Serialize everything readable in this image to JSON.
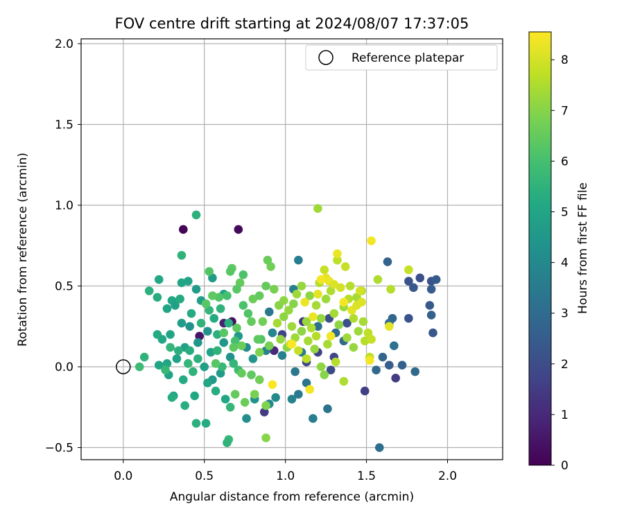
{
  "chart_data": {
    "type": "scatter",
    "title": "FOV centre drift starting at 2024/08/07 17:37:05",
    "xlabel": "Angular distance from reference (arcmin)",
    "ylabel": "Rotation from reference (arcmin)",
    "xlim": [
      -0.26,
      2.34
    ],
    "ylim": [
      -0.575,
      2.03
    ],
    "xticks": [
      0.0,
      0.5,
      1.0,
      1.5,
      2.0
    ],
    "xtick_labels": [
      "0.0",
      "0.5",
      "1.0",
      "1.5",
      "2.0"
    ],
    "yticks": [
      -0.5,
      0.0,
      0.5,
      1.0,
      1.5,
      2.0
    ],
    "ytick_labels": [
      "−0.5",
      "0.0",
      "0.5",
      "1.0",
      "1.5",
      "2.0"
    ],
    "grid": true,
    "legend": {
      "position": "top-right",
      "label": "Reference platepar"
    },
    "reference_point": {
      "x": 0.0,
      "y": 0.0
    },
    "colorbar": {
      "label": "Hours from first FF file",
      "range": [
        0,
        8.55
      ],
      "ticks": [
        0,
        1,
        2,
        3,
        4,
        5,
        6,
        7,
        8
      ],
      "tick_labels": [
        "0",
        "1",
        "2",
        "3",
        "4",
        "5",
        "6",
        "7",
        "8"
      ],
      "colormap": "viridis"
    },
    "points": [
      {
        "x": 0.37,
        "y": 0.85,
        "h": 0.1
      },
      {
        "x": 0.71,
        "y": 0.85,
        "h": 0.2
      },
      {
        "x": 0.67,
        "y": 0.28,
        "h": 0.3
      },
      {
        "x": 0.47,
        "y": 0.19,
        "h": 0.5
      },
      {
        "x": 0.87,
        "y": -0.28,
        "h": 1.5
      },
      {
        "x": 0.62,
        "y": 0.27,
        "h": 0.8
      },
      {
        "x": 0.93,
        "y": 0.1,
        "h": 1.0
      },
      {
        "x": 1.11,
        "y": 0.28,
        "h": 1.3
      },
      {
        "x": 1.2,
        "y": 0.09,
        "h": 1.6
      },
      {
        "x": 1.28,
        "y": -0.02,
        "h": 1.9
      },
      {
        "x": 1.3,
        "y": 0.06,
        "h": 1.7
      },
      {
        "x": 1.49,
        "y": -0.15,
        "h": 1.6
      },
      {
        "x": 1.68,
        "y": -0.07,
        "h": 1.5
      },
      {
        "x": 1.13,
        "y": 0.03,
        "h": 1.8
      },
      {
        "x": 0.98,
        "y": 0.2,
        "h": 1.7
      },
      {
        "x": 1.27,
        "y": 0.3,
        "h": 2.0
      },
      {
        "x": 1.38,
        "y": 0.27,
        "h": 2.1
      },
      {
        "x": 1.83,
        "y": 0.55,
        "h": 2.1
      },
      {
        "x": 1.9,
        "y": 0.53,
        "h": 2.2
      },
      {
        "x": 1.93,
        "y": 0.54,
        "h": 2.4
      },
      {
        "x": 1.9,
        "y": 0.48,
        "h": 2.5
      },
      {
        "x": 1.79,
        "y": 0.49,
        "h": 2.3
      },
      {
        "x": 1.76,
        "y": 0.53,
        "h": 2.2
      },
      {
        "x": 1.89,
        "y": 0.38,
        "h": 2.4
      },
      {
        "x": 1.9,
        "y": 0.32,
        "h": 2.6
      },
      {
        "x": 1.91,
        "y": 0.21,
        "h": 2.3
      },
      {
        "x": 1.76,
        "y": 0.3,
        "h": 2.2
      },
      {
        "x": 1.66,
        "y": 0.3,
        "h": 2.8
      },
      {
        "x": 1.64,
        "y": 0.27,
        "h": 3.0
      },
      {
        "x": 1.63,
        "y": 0.65,
        "h": 2.7
      },
      {
        "x": 1.6,
        "y": 0.06,
        "h": 2.8
      },
      {
        "x": 1.64,
        "y": 0.01,
        "h": 2.5
      },
      {
        "x": 1.72,
        "y": 0.01,
        "h": 2.6
      },
      {
        "x": 1.8,
        "y": -0.03,
        "h": 2.9
      },
      {
        "x": 1.56,
        "y": -0.02,
        "h": 2.9
      },
      {
        "x": 1.58,
        "y": -0.5,
        "h": 3.1
      },
      {
        "x": 1.67,
        "y": 0.13,
        "h": 3.2
      },
      {
        "x": 1.36,
        "y": 0.16,
        "h": 2.9
      },
      {
        "x": 1.31,
        "y": 0.21,
        "h": 3.0
      },
      {
        "x": 1.2,
        "y": 0.25,
        "h": 3.1
      },
      {
        "x": 1.26,
        "y": -0.26,
        "h": 3.3
      },
      {
        "x": 1.17,
        "y": -0.32,
        "h": 3.6
      },
      {
        "x": 1.06,
        "y": -0.03,
        "h": 3.4
      },
      {
        "x": 1.08,
        "y": -0.17,
        "h": 3.5
      },
      {
        "x": 1.13,
        "y": -0.1,
        "h": 3.3
      },
      {
        "x": 1.04,
        "y": -0.2,
        "h": 3.8
      },
      {
        "x": 1.1,
        "y": 0.09,
        "h": 3.5
      },
      {
        "x": 1.05,
        "y": 0.48,
        "h": 3.7
      },
      {
        "x": 1.08,
        "y": 0.66,
        "h": 3.6
      },
      {
        "x": 0.9,
        "y": 0.34,
        "h": 3.4
      },
      {
        "x": 0.88,
        "y": 0.1,
        "h": 3.8
      },
      {
        "x": 0.92,
        "y": 0.21,
        "h": 3.9
      },
      {
        "x": 0.98,
        "y": 0.07,
        "h": 3.7
      },
      {
        "x": 0.94,
        "y": -0.19,
        "h": 4.0
      },
      {
        "x": 0.9,
        "y": -0.23,
        "h": 3.9
      },
      {
        "x": 0.76,
        "y": -0.32,
        "h": 4.2
      },
      {
        "x": 0.81,
        "y": -0.2,
        "h": 4.3
      },
      {
        "x": 0.8,
        "y": 0.05,
        "h": 4.4
      },
      {
        "x": 0.76,
        "y": 0.12,
        "h": 4.1
      },
      {
        "x": 0.71,
        "y": 0.19,
        "h": 4.6
      },
      {
        "x": 0.62,
        "y": 0.15,
        "h": 4.5
      },
      {
        "x": 0.66,
        "y": 0.06,
        "h": 4.3
      },
      {
        "x": 0.6,
        "y": -0.04,
        "h": 4.7
      },
      {
        "x": 0.55,
        "y": -0.08,
        "h": 4.6
      },
      {
        "x": 0.5,
        "y": 0.0,
        "h": 4.8
      },
      {
        "x": 0.54,
        "y": 0.09,
        "h": 4.9
      },
      {
        "x": 0.46,
        "y": 0.15,
        "h": 4.5
      },
      {
        "x": 0.52,
        "y": 0.22,
        "h": 4.4
      },
      {
        "x": 0.41,
        "y": 0.25,
        "h": 4.3
      },
      {
        "x": 0.36,
        "y": 0.27,
        "h": 4.7
      },
      {
        "x": 0.38,
        "y": 0.12,
        "h": 4.8
      },
      {
        "x": 0.33,
        "y": 0.05,
        "h": 4.9
      },
      {
        "x": 0.29,
        "y": 0.2,
        "h": 5.0
      },
      {
        "x": 0.24,
        "y": 0.17,
        "h": 5.1
      },
      {
        "x": 0.21,
        "y": 0.2,
        "h": 5.2
      },
      {
        "x": 0.27,
        "y": 0.02,
        "h": 5.1
      },
      {
        "x": 0.22,
        "y": 0.01,
        "h": 5.0
      },
      {
        "x": 0.28,
        "y": -0.05,
        "h": 4.9
      },
      {
        "x": 0.37,
        "y": -0.08,
        "h": 5.2
      },
      {
        "x": 0.31,
        "y": -0.18,
        "h": 5.0
      },
      {
        "x": 0.38,
        "y": -0.24,
        "h": 5.3
      },
      {
        "x": 0.44,
        "y": -0.18,
        "h": 5.1
      },
      {
        "x": 0.45,
        "y": -0.35,
        "h": 5.4
      },
      {
        "x": 0.51,
        "y": -0.35,
        "h": 5.2
      },
      {
        "x": 0.52,
        "y": -0.1,
        "h": 5.0
      },
      {
        "x": 0.57,
        "y": -0.15,
        "h": 5.3
      },
      {
        "x": 0.63,
        "y": -0.2,
        "h": 5.1
      },
      {
        "x": 0.66,
        "y": -0.25,
        "h": 5.6
      },
      {
        "x": 0.65,
        "y": -0.45,
        "h": 5.7
      },
      {
        "x": 0.64,
        "y": -0.47,
        "h": 5.5
      },
      {
        "x": 0.48,
        "y": 0.41,
        "h": 4.8
      },
      {
        "x": 0.45,
        "y": 0.48,
        "h": 4.7
      },
      {
        "x": 0.4,
        "y": 0.53,
        "h": 4.9
      },
      {
        "x": 0.36,
        "y": 0.52,
        "h": 5.0
      },
      {
        "x": 0.3,
        "y": 0.41,
        "h": 5.1
      },
      {
        "x": 0.32,
        "y": 0.38,
        "h": 4.8
      },
      {
        "x": 0.35,
        "y": 0.42,
        "h": 5.2
      },
      {
        "x": 0.27,
        "y": 0.36,
        "h": 5.0
      },
      {
        "x": 0.21,
        "y": 0.43,
        "h": 5.3
      },
      {
        "x": 0.16,
        "y": 0.47,
        "h": 5.4
      },
      {
        "x": 0.22,
        "y": 0.54,
        "h": 5.1
      },
      {
        "x": 0.55,
        "y": 0.55,
        "h": 4.6
      },
      {
        "x": 0.62,
        "y": 0.45,
        "h": 4.9
      },
      {
        "x": 0.56,
        "y": 0.3,
        "h": 5.2
      },
      {
        "x": 0.6,
        "y": 0.36,
        "h": 5.5
      },
      {
        "x": 0.65,
        "y": 0.27,
        "h": 5.3
      },
      {
        "x": 0.58,
        "y": 0.2,
        "h": 5.4
      },
      {
        "x": 0.53,
        "y": 0.35,
        "h": 5.6
      },
      {
        "x": 0.48,
        "y": 0.27,
        "h": 5.5
      },
      {
        "x": 0.42,
        "y": 0.33,
        "h": 5.2
      },
      {
        "x": 0.41,
        "y": 0.1,
        "h": 5.3
      },
      {
        "x": 0.46,
        "y": 0.05,
        "h": 5.4
      },
      {
        "x": 0.58,
        "y": 0.1,
        "h": 5.5
      },
      {
        "x": 0.68,
        "y": 0.02,
        "h": 5.6
      },
      {
        "x": 0.71,
        "y": -0.02,
        "h": 5.8
      },
      {
        "x": 0.61,
        "y": 0.0,
        "h": 5.7
      },
      {
        "x": 0.36,
        "y": 0.69,
        "h": 5.5
      },
      {
        "x": 0.45,
        "y": 0.94,
        "h": 5.4
      },
      {
        "x": 0.13,
        "y": 0.06,
        "h": 5.5
      },
      {
        "x": 0.1,
        "y": 0.0,
        "h": 5.8
      },
      {
        "x": 0.34,
        "y": 0.1,
        "h": 5.4
      },
      {
        "x": 0.29,
        "y": 0.12,
        "h": 5.6
      },
      {
        "x": 0.26,
        "y": -0.02,
        "h": 5.7
      },
      {
        "x": 0.4,
        "y": 0.02,
        "h": 5.6
      },
      {
        "x": 0.43,
        "y": -0.03,
        "h": 5.5
      },
      {
        "x": 0.3,
        "y": -0.19,
        "h": 5.3
      },
      {
        "x": 0.53,
        "y": 0.59,
        "h": 6.2
      },
      {
        "x": 0.67,
        "y": 0.61,
        "h": 6.4
      },
      {
        "x": 0.66,
        "y": 0.59,
        "h": 6.3
      },
      {
        "x": 0.74,
        "y": 0.57,
        "h": 6.1
      },
      {
        "x": 0.72,
        "y": 0.52,
        "h": 6.5
      },
      {
        "x": 0.7,
        "y": 0.48,
        "h": 6.3
      },
      {
        "x": 0.64,
        "y": 0.44,
        "h": 6.0
      },
      {
        "x": 0.59,
        "y": 0.43,
        "h": 6.2
      },
      {
        "x": 0.55,
        "y": 0.44,
        "h": 6.4
      },
      {
        "x": 0.51,
        "y": 0.39,
        "h": 6.3
      },
      {
        "x": 0.74,
        "y": 0.38,
        "h": 6.1
      },
      {
        "x": 0.77,
        "y": 0.33,
        "h": 6.2
      },
      {
        "x": 0.79,
        "y": 0.28,
        "h": 6.5
      },
      {
        "x": 0.7,
        "y": 0.24,
        "h": 6.4
      },
      {
        "x": 0.62,
        "y": 0.21,
        "h": 6.3
      },
      {
        "x": 0.69,
        "y": 0.16,
        "h": 6.0
      },
      {
        "x": 0.73,
        "y": 0.13,
        "h": 6.6
      },
      {
        "x": 0.85,
        "y": 0.17,
        "h": 6.2
      },
      {
        "x": 0.83,
        "y": 0.17,
        "h": 6.4
      },
      {
        "x": 0.8,
        "y": 0.42,
        "h": 6.6
      },
      {
        "x": 0.88,
        "y": 0.5,
        "h": 6.5
      },
      {
        "x": 0.91,
        "y": 0.62,
        "h": 6.7
      },
      {
        "x": 0.89,
        "y": 0.66,
        "h": 6.6
      },
      {
        "x": 0.93,
        "y": 0.48,
        "h": 6.8
      },
      {
        "x": 0.84,
        "y": 0.44,
        "h": 6.5
      },
      {
        "x": 0.86,
        "y": 0.28,
        "h": 6.7
      },
      {
        "x": 0.9,
        "y": 0.13,
        "h": 6.8
      },
      {
        "x": 0.84,
        "y": 0.09,
        "h": 6.9
      },
      {
        "x": 0.79,
        "y": -0.05,
        "h": 6.4
      },
      {
        "x": 0.73,
        "y": -0.04,
        "h": 6.5
      },
      {
        "x": 0.75,
        "y": -0.22,
        "h": 6.6
      },
      {
        "x": 0.84,
        "y": -0.08,
        "h": 6.7
      },
      {
        "x": 0.81,
        "y": -0.17,
        "h": 6.8
      },
      {
        "x": 0.88,
        "y": -0.24,
        "h": 6.9
      },
      {
        "x": 0.88,
        "y": -0.44,
        "h": 7.0
      },
      {
        "x": 0.69,
        "y": -0.17,
        "h": 6.5
      },
      {
        "x": 0.57,
        "y": 0.02,
        "h": 6.3
      },
      {
        "x": 0.68,
        "y": 0.12,
        "h": 6.4
      },
      {
        "x": 1.2,
        "y": 0.98,
        "h": 7.3
      },
      {
        "x": 0.96,
        "y": 0.38,
        "h": 7.0
      },
      {
        "x": 0.99,
        "y": 0.41,
        "h": 7.1
      },
      {
        "x": 1.02,
        "y": 0.35,
        "h": 7.2
      },
      {
        "x": 1.05,
        "y": 0.39,
        "h": 7.0
      },
      {
        "x": 1.07,
        "y": 0.45,
        "h": 7.3
      },
      {
        "x": 1.1,
        "y": 0.5,
        "h": 7.2
      },
      {
        "x": 1.15,
        "y": 0.44,
        "h": 7.1
      },
      {
        "x": 1.19,
        "y": 0.38,
        "h": 7.4
      },
      {
        "x": 1.22,
        "y": 0.3,
        "h": 7.2
      },
      {
        "x": 1.25,
        "y": 0.42,
        "h": 7.3
      },
      {
        "x": 1.28,
        "y": 0.47,
        "h": 7.5
      },
      {
        "x": 1.3,
        "y": 0.33,
        "h": 7.4
      },
      {
        "x": 1.33,
        "y": 0.26,
        "h": 7.1
      },
      {
        "x": 1.36,
        "y": 0.37,
        "h": 7.3
      },
      {
        "x": 1.39,
        "y": 0.42,
        "h": 7.6
      },
      {
        "x": 1.42,
        "y": 0.3,
        "h": 7.5
      },
      {
        "x": 1.45,
        "y": 0.22,
        "h": 7.3
      },
      {
        "x": 1.48,
        "y": 0.28,
        "h": 7.4
      },
      {
        "x": 1.51,
        "y": 0.21,
        "h": 7.7
      },
      {
        "x": 1.44,
        "y": 0.43,
        "h": 7.4
      },
      {
        "x": 1.47,
        "y": 0.47,
        "h": 7.5
      },
      {
        "x": 1.4,
        "y": 0.5,
        "h": 7.6
      },
      {
        "x": 1.37,
        "y": 0.62,
        "h": 7.8
      },
      {
        "x": 1.32,
        "y": 0.66,
        "h": 7.7
      },
      {
        "x": 1.24,
        "y": 0.6,
        "h": 7.8
      },
      {
        "x": 1.21,
        "y": 0.52,
        "h": 7.6
      },
      {
        "x": 1.13,
        "y": 0.28,
        "h": 7.2
      },
      {
        "x": 1.1,
        "y": 0.22,
        "h": 7.1
      },
      {
        "x": 1.06,
        "y": 0.18,
        "h": 7.3
      },
      {
        "x": 1.01,
        "y": 0.12,
        "h": 7.0
      },
      {
        "x": 0.97,
        "y": 0.17,
        "h": 7.2
      },
      {
        "x": 0.95,
        "y": 0.27,
        "h": 7.4
      },
      {
        "x": 0.99,
        "y": 0.31,
        "h": 7.1
      },
      {
        "x": 1.04,
        "y": 0.25,
        "h": 7.3
      },
      {
        "x": 1.14,
        "y": 0.16,
        "h": 7.4
      },
      {
        "x": 1.18,
        "y": 0.11,
        "h": 7.2
      },
      {
        "x": 1.22,
        "y": 0.0,
        "h": 7.1
      },
      {
        "x": 1.24,
        "y": -0.05,
        "h": 7.0
      },
      {
        "x": 1.31,
        "y": 0.03,
        "h": 7.6
      },
      {
        "x": 1.36,
        "y": -0.09,
        "h": 7.5
      },
      {
        "x": 1.38,
        "y": 0.18,
        "h": 7.3
      },
      {
        "x": 1.42,
        "y": 0.12,
        "h": 7.2
      },
      {
        "x": 1.57,
        "y": 0.54,
        "h": 7.5
      },
      {
        "x": 1.65,
        "y": 0.48,
        "h": 7.6
      },
      {
        "x": 1.76,
        "y": 0.6,
        "h": 7.8
      },
      {
        "x": 1.49,
        "y": 0.16,
        "h": 7.6
      },
      {
        "x": 1.53,
        "y": 0.17,
        "h": 7.8
      },
      {
        "x": 1.52,
        "y": 0.06,
        "h": 7.7
      },
      {
        "x": 1.03,
        "y": 0.14,
        "h": 7.9
      },
      {
        "x": 1.08,
        "y": 0.1,
        "h": 7.8
      },
      {
        "x": 1.13,
        "y": 0.05,
        "h": 7.7
      },
      {
        "x": 1.16,
        "y": 0.24,
        "h": 7.5
      },
      {
        "x": 1.19,
        "y": 0.19,
        "h": 7.6
      },
      {
        "x": 1.26,
        "y": 0.14,
        "h": 7.4
      },
      {
        "x": 1.53,
        "y": 0.78,
        "h": 8.4
      },
      {
        "x": 1.32,
        "y": 0.7,
        "h": 8.3
      },
      {
        "x": 1.25,
        "y": 0.55,
        "h": 8.2
      },
      {
        "x": 1.22,
        "y": 0.54,
        "h": 8.4
      },
      {
        "x": 1.27,
        "y": 0.53,
        "h": 8.3
      },
      {
        "x": 1.3,
        "y": 0.51,
        "h": 8.1
      },
      {
        "x": 1.34,
        "y": 0.49,
        "h": 8.0
      },
      {
        "x": 1.2,
        "y": 0.45,
        "h": 8.2
      },
      {
        "x": 1.12,
        "y": 0.4,
        "h": 8.3
      },
      {
        "x": 1.36,
        "y": 0.4,
        "h": 8.4
      },
      {
        "x": 1.41,
        "y": 0.35,
        "h": 8.2
      },
      {
        "x": 1.44,
        "y": 0.38,
        "h": 8.1
      },
      {
        "x": 1.17,
        "y": 0.31,
        "h": 8.3
      },
      {
        "x": 1.28,
        "y": 0.19,
        "h": 8.4
      },
      {
        "x": 1.04,
        "y": 0.14,
        "h": 8.5
      },
      {
        "x": 1.15,
        "y": -0.14,
        "h": 8.4
      },
      {
        "x": 0.92,
        "y": -0.11,
        "h": 8.5
      },
      {
        "x": 1.52,
        "y": 0.04,
        "h": 8.4
      },
      {
        "x": 1.64,
        "y": 0.25,
        "h": 8.2
      },
      {
        "x": 1.47,
        "y": 0.4,
        "h": 8.1
      },
      {
        "x": 1.46,
        "y": 0.47,
        "h": 8.0
      }
    ]
  }
}
